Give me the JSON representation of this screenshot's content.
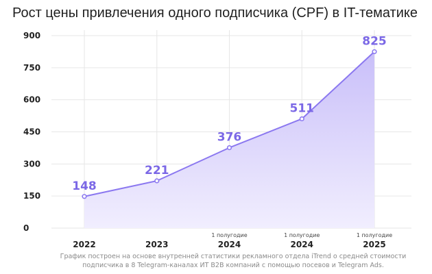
{
  "title": "Рост цены привлечения одного подписчика (CPF) в IT-тематике",
  "chart_data": {
    "type": "area",
    "title": "Рост цены привлечения одного подписчика (CPF) в IT-тематике",
    "xlabel": "",
    "ylabel": "",
    "categories": [
      {
        "top": "",
        "main": "2022"
      },
      {
        "top": "",
        "main": "2023"
      },
      {
        "top": "1 полугодие",
        "main": "2024"
      },
      {
        "top": "1 полугодие",
        "main": "2024"
      },
      {
        "top": "1 полугодие",
        "main": "2025"
      }
    ],
    "values": [
      148,
      221,
      376,
      511,
      825
    ],
    "data_labels": [
      "148",
      "221",
      "376",
      "511",
      "825"
    ],
    "y_ticks": [
      0,
      150,
      300,
      450,
      600,
      750,
      900
    ],
    "ylim": [
      0,
      900
    ],
    "grid": true,
    "legend": "none",
    "colors": {
      "line": "#8b78f0",
      "fill_top": "#c9bff9",
      "fill_bottom": "#f1eefe",
      "label": "#7b68e6",
      "grid": "#e6e6e6",
      "axis_text": "#222222",
      "x_top_text": "#444444"
    }
  },
  "footnote": {
    "line1": "График построен на основе внутренней статистики рекламного отдела iTrend о средней стоимости",
    "line2": "подписчика в 8 Telegram-каналах ИТ B2B компаний с помощью посевов и Telegram Ads."
  }
}
